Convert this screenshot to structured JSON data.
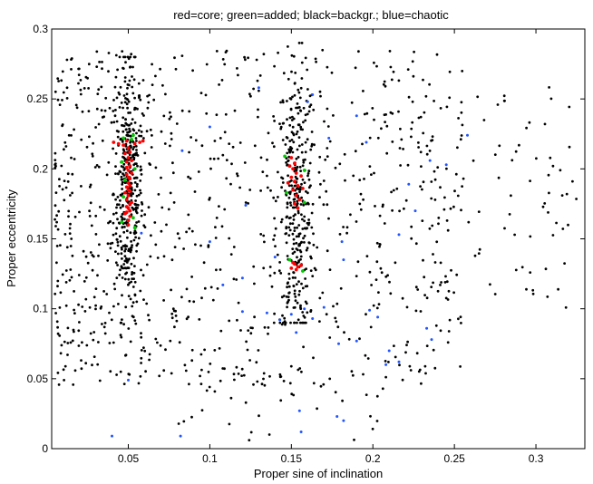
{
  "chart_data": {
    "type": "scatter",
    "title": "red=core; green=added; black=backgr.; blue=chaotic",
    "xlabel": "Proper sine of inclination",
    "ylabel": "Proper eccentricity",
    "xlim": [
      0.003,
      0.33
    ],
    "ylim": [
      0,
      0.3
    ],
    "xticks": [
      0.05,
      0.1,
      0.15,
      0.2,
      0.25,
      0.3
    ],
    "xtick_labels": [
      "0.05",
      "0.1",
      "0.15",
      "0.2",
      "0.25",
      "0.3"
    ],
    "yticks": [
      0,
      0.05,
      0.1,
      0.15,
      0.2,
      0.25,
      0.3
    ],
    "ytick_labels": [
      "0",
      "0.05",
      "0.1",
      "0.15",
      "0.2",
      "0.25",
      "0.3"
    ],
    "grid": false,
    "colors": {
      "core": "#ff0000",
      "added": "#00cc00",
      "background": "#000000",
      "chaotic": "#2255ff"
    },
    "series": [
      {
        "role": "core",
        "points": [
          [
            0.049,
            0.22
          ],
          [
            0.05,
            0.215
          ],
          [
            0.051,
            0.212
          ],
          [
            0.05,
            0.208
          ],
          [
            0.049,
            0.205
          ],
          [
            0.051,
            0.202
          ],
          [
            0.05,
            0.199
          ],
          [
            0.049,
            0.196
          ],
          [
            0.051,
            0.193
          ],
          [
            0.05,
            0.19
          ],
          [
            0.049,
            0.187
          ],
          [
            0.051,
            0.184
          ],
          [
            0.05,
            0.181
          ],
          [
            0.049,
            0.178
          ],
          [
            0.051,
            0.175
          ],
          [
            0.05,
            0.172
          ],
          [
            0.049,
            0.169
          ],
          [
            0.051,
            0.166
          ],
          [
            0.05,
            0.163
          ],
          [
            0.05,
            0.16
          ],
          [
            0.048,
            0.211
          ],
          [
            0.052,
            0.197
          ],
          [
            0.048,
            0.183
          ],
          [
            0.052,
            0.176
          ],
          [
            0.048,
            0.168
          ],
          [
            0.052,
            0.206
          ],
          [
            0.049,
            0.201
          ],
          [
            0.051,
            0.188
          ],
          [
            0.05,
            0.185
          ],
          [
            0.049,
            0.173
          ],
          [
            0.051,
            0.17
          ],
          [
            0.05,
            0.194
          ],
          [
            0.041,
            0.219
          ],
          [
            0.044,
            0.218
          ],
          [
            0.047,
            0.217
          ],
          [
            0.054,
            0.218
          ],
          [
            0.057,
            0.219
          ],
          [
            0.059,
            0.22
          ],
          [
            0.15,
            0.208
          ],
          [
            0.152,
            0.204
          ],
          [
            0.151,
            0.2
          ],
          [
            0.153,
            0.197
          ],
          [
            0.15,
            0.194
          ],
          [
            0.152,
            0.191
          ],
          [
            0.154,
            0.188
          ],
          [
            0.151,
            0.185
          ],
          [
            0.153,
            0.181
          ],
          [
            0.155,
            0.178
          ],
          [
            0.152,
            0.175
          ],
          [
            0.154,
            0.172
          ],
          [
            0.149,
            0.202
          ],
          [
            0.156,
            0.195
          ],
          [
            0.148,
            0.19
          ],
          [
            0.157,
            0.186
          ],
          [
            0.152,
            0.132
          ],
          [
            0.154,
            0.13
          ],
          [
            0.15,
            0.129
          ],
          [
            0.156,
            0.131
          ],
          [
            0.153,
            0.128
          ],
          [
            0.151,
            0.133
          ]
        ]
      },
      {
        "role": "added",
        "points": [
          [
            0.047,
            0.222
          ],
          [
            0.053,
            0.224
          ],
          [
            0.046,
            0.205
          ],
          [
            0.054,
            0.2
          ],
          [
            0.047,
            0.18
          ],
          [
            0.053,
            0.165
          ],
          [
            0.046,
            0.162
          ],
          [
            0.054,
            0.158
          ],
          [
            0.052,
            0.221
          ],
          [
            0.048,
            0.192
          ],
          [
            0.146,
            0.209
          ],
          [
            0.158,
            0.199
          ],
          [
            0.147,
            0.183
          ],
          [
            0.158,
            0.176
          ],
          [
            0.149,
            0.135
          ],
          [
            0.157,
            0.127
          ]
        ]
      },
      {
        "role": "chaotic",
        "points": [
          [
            0.04,
            0.009
          ],
          [
            0.05,
            0.049
          ],
          [
            0.082,
            0.009
          ],
          [
            0.1,
            0.23
          ],
          [
            0.083,
            0.213
          ],
          [
            0.12,
            0.098
          ],
          [
            0.135,
            0.097
          ],
          [
            0.143,
            0.092
          ],
          [
            0.15,
            0.096
          ],
          [
            0.153,
            0.083
          ],
          [
            0.158,
            0.1
          ],
          [
            0.163,
            0.093
          ],
          [
            0.17,
            0.101
          ],
          [
            0.179,
            0.075
          ],
          [
            0.182,
            0.02
          ],
          [
            0.19,
            0.077
          ],
          [
            0.198,
            0.099
          ],
          [
            0.203,
            0.094
          ],
          [
            0.208,
            0.06
          ],
          [
            0.21,
            0.07
          ],
          [
            0.216,
            0.062
          ],
          [
            0.233,
            0.086
          ],
          [
            0.236,
            0.078
          ],
          [
            0.155,
            0.027
          ],
          [
            0.156,
            0.012
          ],
          [
            0.178,
            0.023
          ],
          [
            0.13,
            0.258
          ],
          [
            0.163,
            0.253
          ],
          [
            0.16,
            0.248
          ],
          [
            0.19,
            0.238
          ],
          [
            0.222,
            0.189
          ],
          [
            0.235,
            0.206
          ],
          [
            0.245,
            0.203
          ],
          [
            0.258,
            0.224
          ],
          [
            0.12,
            0.122
          ],
          [
            0.14,
            0.137
          ],
          [
            0.181,
            0.148
          ],
          [
            0.182,
            0.135
          ],
          [
            0.196,
            0.219
          ],
          [
            0.058,
            0.154
          ],
          [
            0.1,
            0.148
          ],
          [
            0.108,
            0.117
          ],
          [
            0.122,
            0.174
          ],
          [
            0.173,
            0.222
          ],
          [
            0.226,
            0.17
          ],
          [
            0.216,
            0.153
          ]
        ]
      }
    ]
  }
}
